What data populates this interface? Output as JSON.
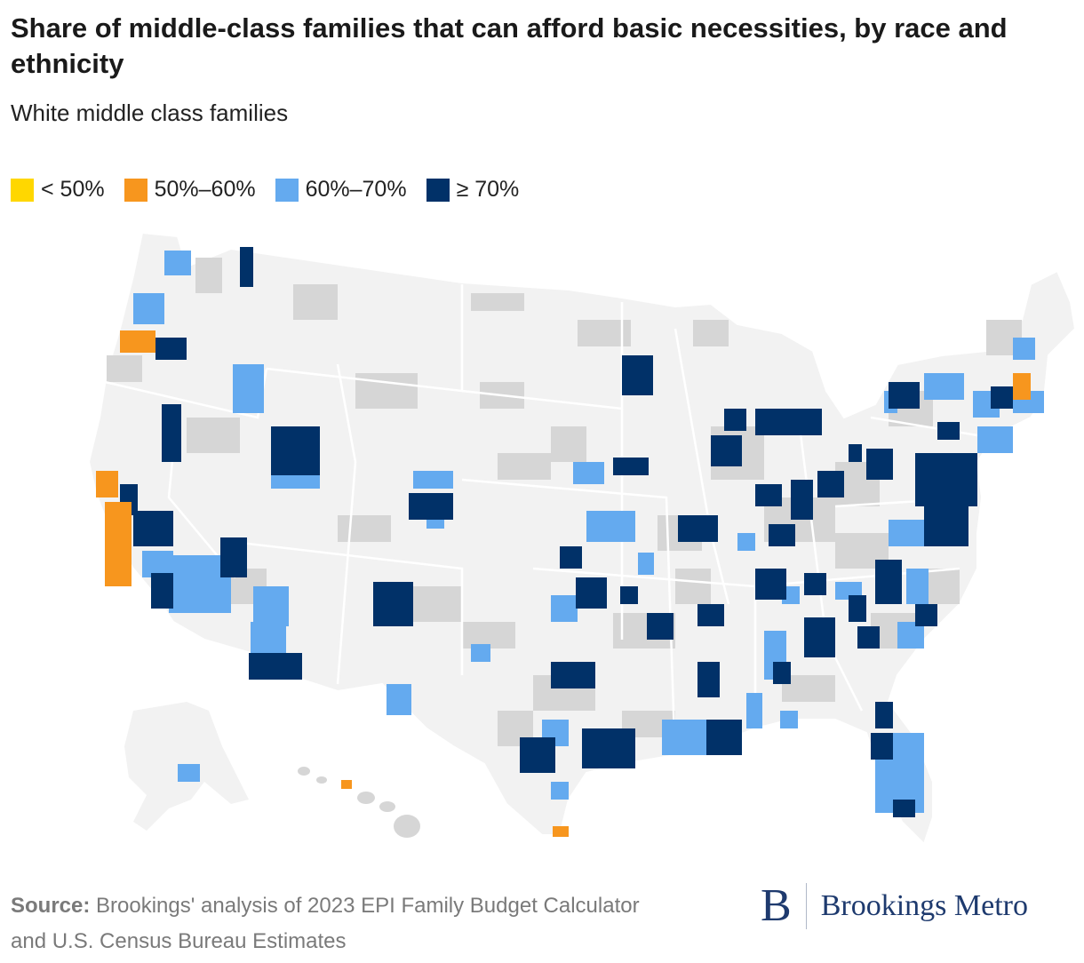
{
  "header": {
    "title": "Share of middle-class families that can afford basic necessities, by race and ethnicity",
    "subtitle": "White middle class families"
  },
  "legend": [
    {
      "label": "< 50%",
      "color": "#ffd700"
    },
    {
      "label": "50%–60%",
      "color": "#f7961e"
    },
    {
      "label": "60%–70%",
      "color": "#64aaef"
    },
    {
      "label": "≥ 70%",
      "color": "#013168"
    }
  ],
  "map_colors": {
    "no_data_land": "#f2f2f2",
    "county_with_data": "#d6d6d6",
    "state_border": "#ffffff"
  },
  "footer": {
    "source_label": "Source:",
    "source_text": " Brookings' analysis of 2023 EPI Family Budget Calculator and U.S. Census Bureau Estimates",
    "brand_mark": "B",
    "brand_name": "Brookings Metro"
  }
}
